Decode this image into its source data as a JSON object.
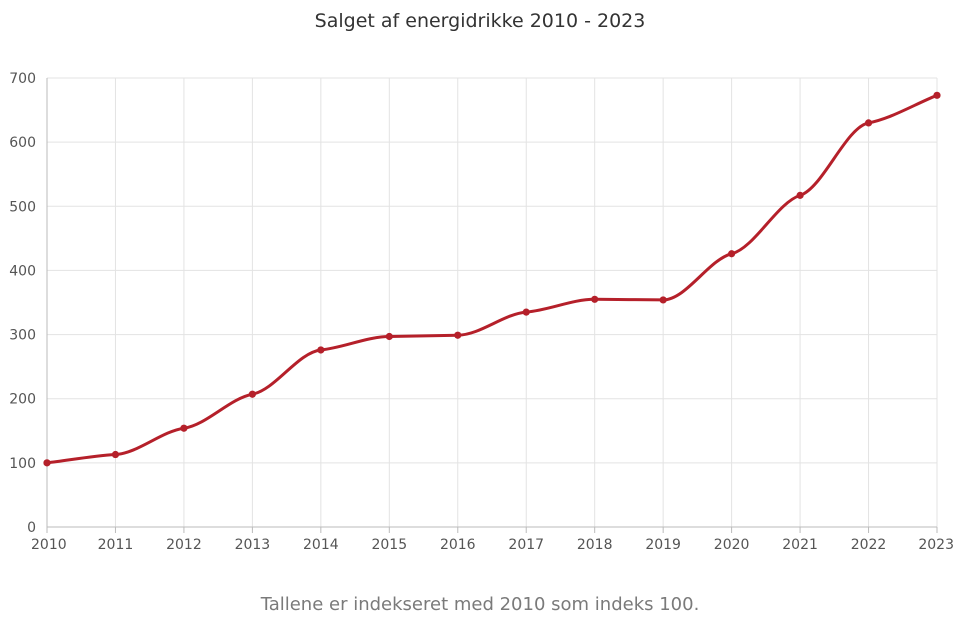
{
  "chart_data": {
    "type": "line",
    "title": "Salget af energidrikke 2010 - 2023",
    "caption": "Tallene er indekseret med 2010 som indeks 100.",
    "xlabel": "",
    "ylabel": "",
    "x": [
      "2010",
      "2011",
      "2012",
      "2013",
      "2014",
      "2015",
      "2016",
      "2017",
      "2018",
      "2019",
      "2020",
      "2021",
      "2022",
      "2023"
    ],
    "values": [
      100,
      113,
      154,
      207,
      276,
      297,
      299,
      335,
      355,
      354,
      426,
      517,
      630,
      673
    ],
    "ylim": [
      0,
      700
    ],
    "yticks": [
      "0",
      "100",
      "200",
      "300",
      "400",
      "500",
      "600",
      "700"
    ],
    "grid": true,
    "legend": "none",
    "line_color": "#b5202a",
    "grid_color": "#e3e3e3",
    "axis_color": "#bbbbbb"
  }
}
